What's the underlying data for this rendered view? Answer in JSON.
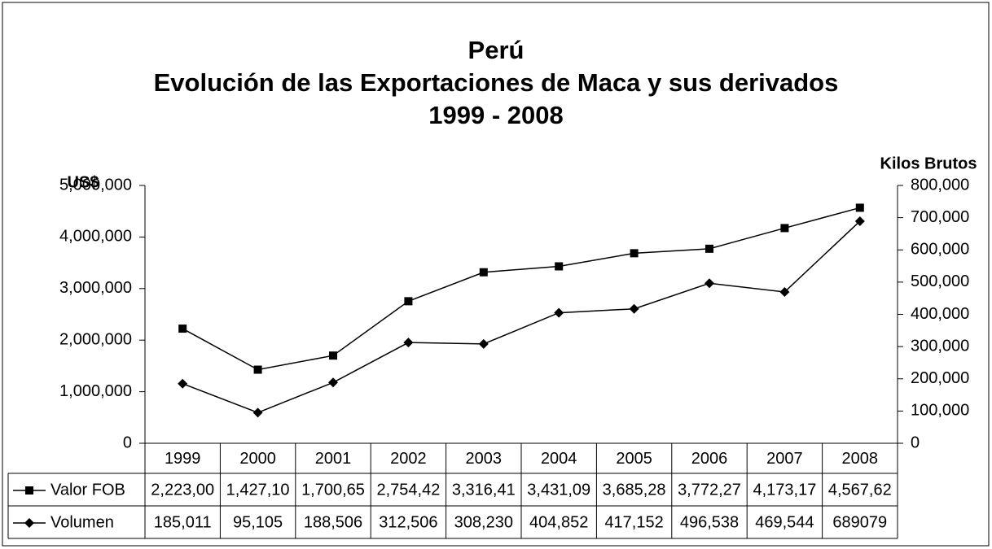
{
  "chart_data": {
    "type": "line",
    "title": [
      "Perú",
      "Evolución de las Exportaciones de Maca y sus derivados",
      "1999 - 2008"
    ],
    "y_label": "US$",
    "y2_label": "Kilos Brutos",
    "categories": [
      "1999",
      "2000",
      "2001",
      "2002",
      "2003",
      "2004",
      "2005",
      "2006",
      "2007",
      "2008"
    ],
    "series": [
      {
        "name": "Valor FOB",
        "color": "#000000",
        "marker": "square",
        "values": [
          2223000,
          1427100,
          1700650,
          2754420,
          3316410,
          3431090,
          3685280,
          3772270,
          4173170,
          4567620
        ],
        "value_labels": [
          "2,223,00",
          "1,427,10",
          "1,700,65",
          "2,754,42",
          "3,316,41",
          "3,431,09",
          "3,685,28",
          "3,772,27",
          "4,173,17",
          "4,567,62"
        ]
      },
      {
        "name": "Volumen",
        "color": "#000000",
        "marker": "diamond",
        "axis": "y2",
        "values": [
          185011,
          95105,
          188506,
          312506,
          308230,
          404852,
          417152,
          496538,
          469544,
          689079
        ],
        "value_labels": [
          "185,011",
          "95,105",
          "188,506",
          "312,506",
          "308,230",
          "404,852",
          "417,152",
          "496,538",
          "469,544",
          "689079"
        ]
      }
    ],
    "ylim": [
      0,
      5000000
    ],
    "yticks": [
      0,
      {
        "value": 1000000,
        "label": "1,000,000"
      },
      {
        "value": 2000000,
        "label": "2,000,000"
      },
      {
        "value": 3000000,
        "label": "3,000,000"
      },
      {
        "value": 4000000,
        "label": "4,000,000"
      },
      {
        "value": 5000000,
        "label": "5,000,000"
      }
    ],
    "y2lim": [
      0,
      800000
    ],
    "y2ticks": [
      0,
      {
        "value": 100000,
        "label": "100,000"
      },
      {
        "value": 200000,
        "label": "200,000"
      },
      {
        "value": 300000,
        "label": "300,000"
      },
      {
        "value": 400000,
        "label": "400,000"
      },
      {
        "value": 500000,
        "label": "500,000"
      },
      {
        "value": 600000,
        "label": "600,000"
      },
      {
        "value": 700000,
        "label": "700,000"
      },
      {
        "value": 800000,
        "label": "800,000"
      }
    ],
    "data_table": true
  }
}
